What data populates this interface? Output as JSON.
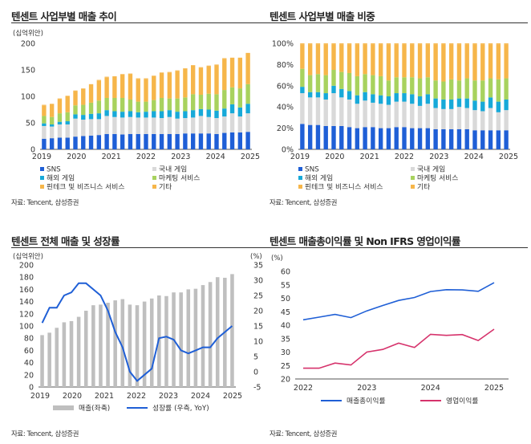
{
  "source": "자료: Tencent, 삼성증권",
  "chart_data": [
    {
      "type": "bar",
      "stacked": true,
      "title": "텐센트 사업부별 매출 추이",
      "unit": "(십억위안)",
      "ylim": [
        0,
        200
      ],
      "yticks": [
        0,
        50,
        100,
        150,
        200
      ],
      "year_ticks": [
        "2019",
        "2020",
        "2021",
        "2022",
        "2023",
        "2024",
        "2025"
      ],
      "colors": [
        "#1f5fd6",
        "#d9d9d9",
        "#17a9d8",
        "#a8d25e",
        "#f6b64a"
      ],
      "series": [
        {
          "name": "SNS",
          "values": [
            20,
            21,
            22,
            22,
            24,
            25,
            26,
            27,
            29,
            29,
            28,
            29,
            29,
            29,
            29,
            29,
            29,
            29,
            30,
            30,
            30,
            30,
            29,
            31,
            32,
            32,
            33
          ]
        },
        {
          "name": "국내 게임",
          "values": [
            24,
            22,
            25,
            25,
            34,
            31,
            31,
            30,
            34,
            32,
            32,
            32,
            31,
            31,
            31,
            30,
            32,
            29,
            29,
            30,
            33,
            31,
            30,
            31,
            36,
            30,
            35
          ]
        },
        {
          "name": "해외 게임",
          "values": [
            5,
            4,
            5,
            6,
            8,
            9,
            10,
            11,
            11,
            11,
            11,
            11,
            10,
            11,
            12,
            13,
            13,
            13,
            13,
            14,
            13,
            14,
            14,
            15,
            17,
            17,
            18
          ]
        },
        {
          "name": "마케팅 서비스",
          "values": [
            14,
            14,
            16,
            17,
            17,
            19,
            21,
            24,
            23,
            25,
            26,
            22,
            20,
            19,
            21,
            25,
            22,
            25,
            26,
            30,
            27,
            30,
            31,
            35,
            32,
            36,
            37
          ]
        },
        {
          "name": "핀테크 및 비즈니스 서비스",
          "values": [
            20,
            24,
            27,
            30,
            27,
            30,
            34,
            38,
            39,
            40,
            44,
            47,
            43,
            43,
            45,
            47,
            49,
            52,
            54,
            54,
            51,
            52,
            55,
            59,
            55,
            57,
            58
          ]
        },
        {
          "name": "기타",
          "values": [
            1,
            1,
            1,
            1,
            1,
            1,
            1,
            1,
            1,
            1,
            1,
            2,
            1,
            1,
            1,
            1,
            1,
            1,
            1,
            1,
            1,
            1,
            1,
            1,
            1,
            1,
            1
          ]
        }
      ]
    },
    {
      "type": "bar",
      "stacked": true,
      "percent": true,
      "title": "텐센트 사업부별 매출 비중",
      "ylim": [
        0,
        100
      ],
      "yticks": [
        "0%",
        "20%",
        "40%",
        "60%",
        "80%",
        "100%"
      ],
      "year_ticks": [
        "2019",
        "2020",
        "2021",
        "2022",
        "2023",
        "2024",
        "2025"
      ],
      "colors": [
        "#1f5fd6",
        "#d9d9d9",
        "#17a9d8",
        "#a8d25e",
        "#f6b64a"
      ],
      "series": [
        {
          "name": "SNS",
          "values": [
            24,
            23,
            23,
            22,
            22,
            22,
            21,
            20,
            21,
            21,
            20,
            20,
            21,
            21,
            20,
            20,
            20,
            19,
            19,
            19,
            19,
            19,
            18,
            18,
            18,
            18,
            18
          ]
        },
        {
          "name": "국내 게임",
          "values": [
            29,
            26,
            26,
            25,
            31,
            27,
            26,
            23,
            25,
            23,
            23,
            22,
            24,
            24,
            23,
            21,
            23,
            20,
            19,
            19,
            21,
            20,
            19,
            18,
            21,
            17,
            19
          ]
        },
        {
          "name": "해외 게임",
          "values": [
            6,
            5,
            5,
            6,
            7,
            8,
            8,
            8,
            8,
            8,
            8,
            8,
            8,
            8,
            9,
            9,
            9,
            9,
            9,
            9,
            8,
            9,
            9,
            9,
            10,
            10,
            10
          ]
        },
        {
          "name": "마케팅 서비스",
          "values": [
            17,
            16,
            17,
            17,
            15,
            16,
            17,
            18,
            17,
            18,
            18,
            15,
            15,
            15,
            16,
            17,
            16,
            17,
            17,
            19,
            17,
            19,
            19,
            20,
            18,
            21,
            20
          ]
        },
        {
          "name": "핀테크 및 비즈니스 서비스",
          "values": [
            23,
            29,
            28,
            29,
            24,
            26,
            27,
            30,
            28,
            29,
            30,
            34,
            31,
            31,
            31,
            32,
            31,
            34,
            35,
            33,
            34,
            32,
            34,
            34,
            32,
            33,
            32
          ]
        },
        {
          "name": "기타",
          "values": [
            1,
            1,
            1,
            1,
            1,
            1,
            1,
            1,
            1,
            1,
            1,
            1,
            1,
            1,
            1,
            1,
            1,
            1,
            1,
            1,
            1,
            1,
            1,
            1,
            1,
            1,
            1
          ]
        }
      ]
    },
    {
      "type": "bar",
      "title": "텐센트 전체 매출 및 성장률",
      "left_unit": "(십억위안)",
      "right_unit": "(%)",
      "ylim": [
        0,
        200
      ],
      "yticks": [
        0,
        20,
        40,
        60,
        80,
        100,
        120,
        140,
        160,
        180,
        200
      ],
      "y2lim": [
        -5,
        35
      ],
      "y2ticks": [
        -5,
        0,
        5,
        10,
        15,
        20,
        25,
        30,
        35
      ],
      "year_ticks": [
        "2019",
        "2020",
        "2021",
        "2022",
        "2023",
        "2024",
        "2025"
      ],
      "bar_series": {
        "name": "매출(좌축)",
        "color": "#bfbfbf",
        "values": [
          85,
          89,
          97,
          106,
          108,
          115,
          125,
          134,
          135,
          138,
          142,
          144,
          135,
          134,
          140,
          145,
          150,
          149,
          155,
          155,
          160,
          161,
          167,
          172,
          180,
          179,
          185
        ]
      },
      "line_series": {
        "name": "성장률 (우측, YoY)",
        "color": "#1f5fd6",
        "values": [
          16,
          21,
          21,
          25,
          26,
          29,
          29,
          27,
          25,
          20,
          13,
          8,
          0,
          -3,
          -1,
          1,
          11,
          11.5,
          10.5,
          7,
          6,
          7,
          8,
          8,
          11,
          13,
          15
        ]
      }
    },
    {
      "type": "line",
      "title": "텐센트 매출총이익률 및 Non IFRS 영업이익률",
      "unit": "(%)",
      "ylim": [
        20,
        60
      ],
      "yticks": [
        20,
        25,
        30,
        35,
        40,
        45,
        50,
        55,
        60
      ],
      "year_ticks": [
        "2022",
        "2023",
        "2024",
        "2025"
      ],
      "series": [
        {
          "name": "매출총이익률",
          "color": "#1f5fd6",
          "values": [
            42,
            43,
            44,
            42.8,
            45.3,
            47.3,
            49.2,
            50.3,
            52.5,
            53.2,
            53.1,
            52.6,
            55.8
          ]
        },
        {
          "name": "영업이익률",
          "color": "#d6336c",
          "values": [
            24,
            24,
            25.9,
            25.2,
            30,
            31,
            33.3,
            31.7,
            36.6,
            36.2,
            36.5,
            34.3,
            38.5
          ]
        }
      ]
    }
  ]
}
